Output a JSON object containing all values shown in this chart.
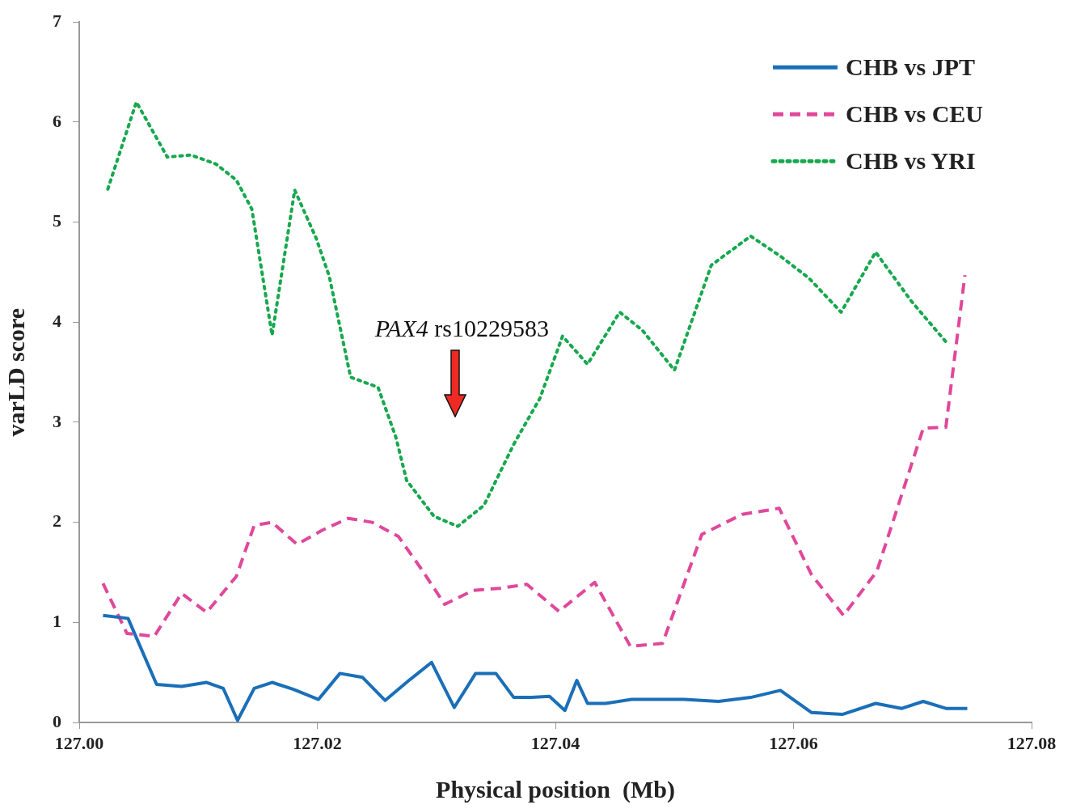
{
  "chart_data": {
    "type": "line",
    "xlabel": "Physical position  (Mb)",
    "ylabel": "varLD score",
    "xlim": [
      127.0,
      127.08
    ],
    "xticks": [
      {
        "value": 127.0,
        "label": "127.00"
      },
      127.02,
      127.04,
      127.06,
      127.08
    ],
    "ylim": [
      0,
      7
    ],
    "yticks": [
      0,
      1,
      2,
      3,
      4,
      5,
      6,
      7
    ],
    "grid": false,
    "legend": "top right",
    "annotations": [
      "PAX4 rs10229583"
    ],
    "series": [
      {
        "name": "CHB vs JPT",
        "color": "#1a6fb8",
        "line_style": "solid",
        "x": [
          127.002,
          127.0041,
          127.0065,
          127.0086,
          127.0107,
          127.0121,
          127.0133,
          127.0147,
          127.0162,
          127.018,
          127.0201,
          127.0219,
          127.0238,
          127.0257,
          127.0278,
          127.0296,
          127.0315,
          127.0333,
          127.035,
          127.0365,
          127.038,
          127.0395,
          127.0408,
          127.0418,
          127.0427,
          127.0442,
          127.0464,
          127.0508,
          127.0537,
          127.0564,
          127.0589,
          127.0615,
          127.0641,
          127.0669,
          127.0691,
          127.0709,
          127.0728,
          127.0746
        ],
        "values": [
          1.07,
          1.04,
          0.38,
          0.36,
          0.4,
          0.34,
          0.02,
          0.34,
          0.4,
          0.33,
          0.23,
          0.49,
          0.45,
          0.22,
          0.43,
          0.6,
          0.15,
          0.49,
          0.49,
          0.25,
          0.25,
          0.26,
          0.12,
          0.42,
          0.19,
          0.19,
          0.23,
          0.23,
          0.21,
          0.25,
          0.32,
          0.1,
          0.08,
          0.19,
          0.14,
          0.21,
          0.14,
          0.14
        ]
      },
      {
        "name": "CHB vs CEU",
        "color": "#e0489b",
        "line_style": "dashed",
        "x": [
          127.002,
          127.004,
          127.0063,
          127.0086,
          127.0107,
          127.0132,
          127.0147,
          127.0162,
          127.0183,
          127.0204,
          127.0226,
          127.0246,
          127.0268,
          127.0287,
          127.0307,
          127.0331,
          127.0353,
          127.0376,
          127.0403,
          127.0433,
          127.0463,
          127.049,
          127.0523,
          127.0557,
          127.0588,
          127.0615,
          127.0642,
          127.067,
          127.0709,
          127.0728,
          127.0744
        ],
        "values": [
          1.39,
          0.89,
          0.86,
          1.29,
          1.1,
          1.46,
          1.97,
          2.0,
          1.78,
          1.92,
          2.04,
          2.0,
          1.86,
          1.54,
          1.18,
          1.32,
          1.34,
          1.38,
          1.11,
          1.4,
          0.76,
          0.79,
          1.88,
          2.08,
          2.14,
          1.48,
          1.07,
          1.51,
          2.94,
          2.95,
          4.47
        ]
      },
      {
        "name": "CHB vs YRI",
        "color": "#17a84e",
        "line_style": "dotted",
        "x": [
          127.0024,
          127.0048,
          127.0074,
          127.0094,
          127.0115,
          127.0132,
          127.0145,
          127.0162,
          127.0181,
          127.0199,
          127.021,
          127.0228,
          127.0251,
          127.0266,
          127.0275,
          127.0298,
          127.0318,
          127.034,
          127.0365,
          127.0387,
          127.0406,
          127.0427,
          127.0454,
          127.0473,
          127.05,
          127.0531,
          127.0564,
          127.0589,
          127.0613,
          127.064,
          127.0669,
          127.0699,
          127.0729
        ],
        "values": [
          5.33,
          6.2,
          5.65,
          5.67,
          5.58,
          5.42,
          5.13,
          3.87,
          5.32,
          4.84,
          4.46,
          3.45,
          3.35,
          2.85,
          2.42,
          2.06,
          1.96,
          2.17,
          2.78,
          3.24,
          3.86,
          3.58,
          4.1,
          3.92,
          3.52,
          4.57,
          4.86,
          4.66,
          4.44,
          4.1,
          4.7,
          4.21,
          3.79
        ]
      }
    ]
  }
}
